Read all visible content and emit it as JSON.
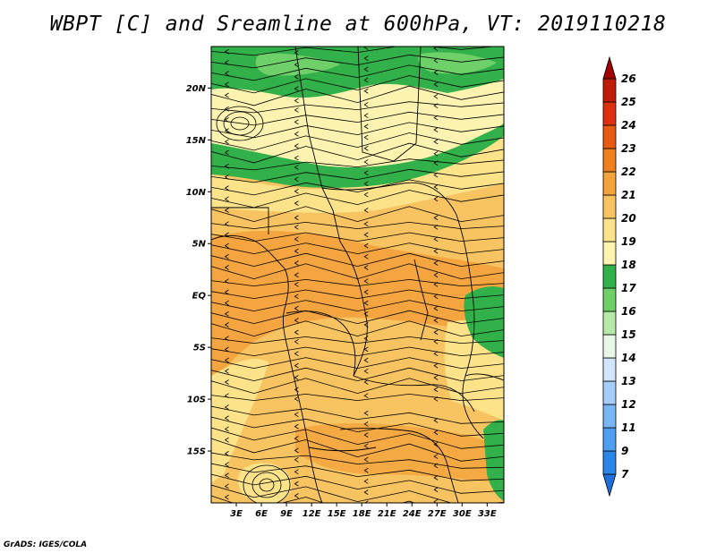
{
  "title": "WBPT [C] and Sreamline at 600hPa, VT: 2019110218",
  "credit": "GrADS: IGES/COLA",
  "map": {
    "lon_range": [
      0,
      35
    ],
    "lat_range": [
      -20,
      24
    ],
    "lat_ticks": [
      {
        "value": 20,
        "label": "20N"
      },
      {
        "value": 15,
        "label": "15N"
      },
      {
        "value": 10,
        "label": "10N"
      },
      {
        "value": 5,
        "label": "5N"
      },
      {
        "value": 0,
        "label": "EQ"
      },
      {
        "value": -5,
        "label": "5S"
      },
      {
        "value": -10,
        "label": "10S"
      },
      {
        "value": -15,
        "label": "15S"
      }
    ],
    "lon_ticks": [
      {
        "value": 3,
        "label": "3E"
      },
      {
        "value": 6,
        "label": "6E"
      },
      {
        "value": 9,
        "label": "9E"
      },
      {
        "value": 12,
        "label": "12E"
      },
      {
        "value": 15,
        "label": "15E"
      },
      {
        "value": 18,
        "label": "18E"
      },
      {
        "value": 21,
        "label": "21E"
      },
      {
        "value": 24,
        "label": "24E"
      },
      {
        "value": 27,
        "label": "27E"
      },
      {
        "value": 30,
        "label": "30E"
      },
      {
        "value": 33,
        "label": "33E"
      }
    ]
  },
  "colorbar": {
    "levels": [
      "7",
      "9",
      "11",
      "12",
      "13",
      "14",
      "15",
      "16",
      "17",
      "18",
      "19",
      "20",
      "21",
      "22",
      "23",
      "24",
      "25",
      "26"
    ],
    "colors": [
      "#1e6fd9",
      "#2a86e8",
      "#4f9ff0",
      "#7ab6f5",
      "#a6cdf8",
      "#d2e6fb",
      "#e8f7e8",
      "#b8e8a8",
      "#6fd06a",
      "#32b04a",
      "#fdf3b0",
      "#fce38a",
      "#f8c461",
      "#f3a23c",
      "#ee8020",
      "#e85a10",
      "#de3010",
      "#c01a08",
      "#a00000"
    ]
  }
}
